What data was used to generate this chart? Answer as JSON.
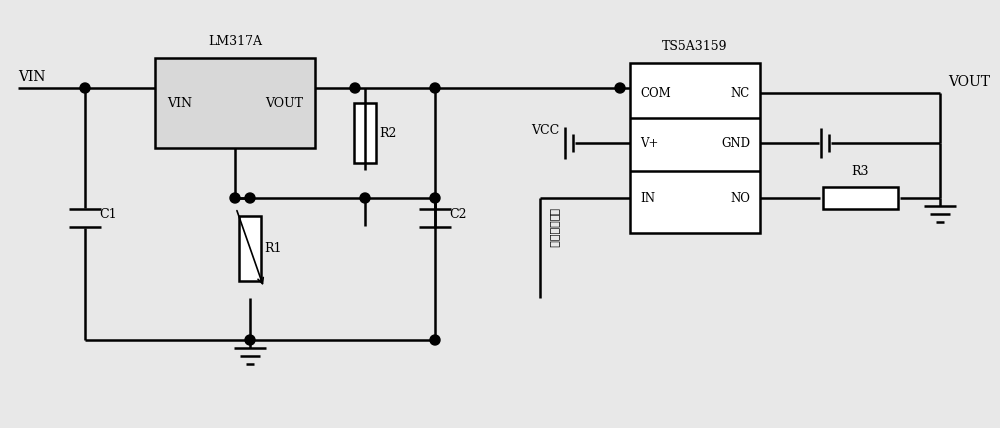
{
  "bg_color": "#e8e8e8",
  "line_color": "#000000",
  "line_width": 1.8,
  "fig_width": 10.0,
  "fig_height": 4.28,
  "labels": {
    "VIN_label": "VIN",
    "VOUT_label": "VOUT",
    "VCC_label": "VCC",
    "LM317A_title": "LM317A",
    "LM317A_VIN": "VIN",
    "LM317A_VOUT": "VOUT",
    "TS5A_title": "TS5A3159",
    "TS5A_COM": "COM",
    "TS5A_NC": "NC",
    "TS5A_VP": "V+",
    "TS5A_GND": "GND",
    "TS5A_IN": "IN",
    "TS5A_NO": "NO",
    "R1": "R1",
    "R2": "R2",
    "R3": "R3",
    "C1": "C1",
    "C2": "C2",
    "square_wave": "方波控制信号"
  }
}
